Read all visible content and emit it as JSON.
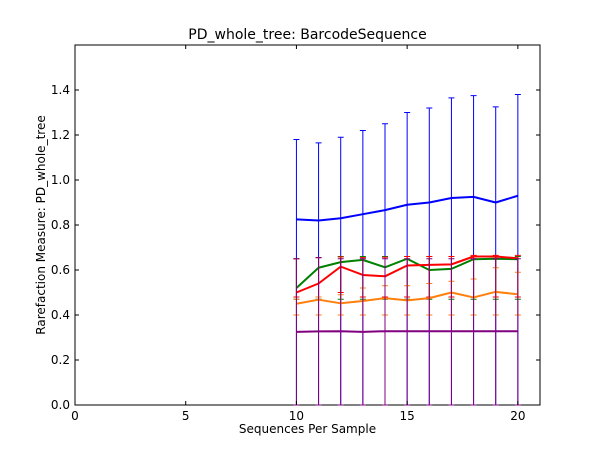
{
  "chart_data": {
    "type": "line",
    "title": "PD_whole_tree: BarcodeSequence",
    "xlabel": "Sequences Per Sample",
    "ylabel": "Rarefaction Measure: PD_whole_tree",
    "xlim": [
      0,
      21
    ],
    "ylim": [
      0.0,
      1.6
    ],
    "xticks": [
      0,
      5,
      10,
      15,
      20
    ],
    "yticks": [
      "0.0",
      "0.2",
      "0.4",
      "0.6",
      "0.8",
      "1.0",
      "1.2",
      "1.4"
    ],
    "grid": false,
    "x": [
      10,
      11,
      12,
      13,
      14,
      15,
      16,
      17,
      18,
      19,
      20
    ],
    "series": [
      {
        "color": "#0000ff",
        "values": [
          0.825,
          0.82,
          0.83,
          0.848,
          0.866,
          0.89,
          0.9,
          0.92,
          0.925,
          0.9,
          0.93
        ],
        "upper": [
          1.18,
          1.165,
          1.19,
          1.22,
          1.25,
          1.3,
          1.32,
          1.365,
          1.375,
          1.325,
          1.38
        ],
        "lower": [
          0.0,
          0.0,
          0.0,
          0.0,
          0.0,
          0.0,
          0.0,
          0.0,
          0.0,
          0.0,
          0.0
        ]
      },
      {
        "color": "#008000",
        "values": [
          0.52,
          0.61,
          0.635,
          0.645,
          0.612,
          0.65,
          0.6,
          0.605,
          0.648,
          0.65,
          0.648
        ],
        "upper": [
          0.65,
          0.655,
          0.66,
          0.66,
          0.66,
          0.66,
          0.66,
          0.66,
          0.66,
          0.66,
          0.66
        ],
        "lower": [
          0.47,
          0.47,
          0.47,
          0.47,
          0.47,
          0.47,
          0.47,
          0.47,
          0.47,
          0.47,
          0.47
        ]
      },
      {
        "color": "#ff0000",
        "values": [
          0.5,
          0.54,
          0.615,
          0.578,
          0.572,
          0.62,
          0.623,
          0.625,
          0.66,
          0.66,
          0.652
        ],
        "upper": [
          0.65,
          0.655,
          0.658,
          0.655,
          0.657,
          0.66,
          0.66,
          0.66,
          0.665,
          0.665,
          0.665
        ],
        "lower": [
          0.48,
          0.48,
          0.5,
          0.48,
          0.48,
          0.48,
          0.48,
          0.48,
          0.48,
          0.48,
          0.48
        ]
      },
      {
        "color": "#ff7f0e",
        "values": [
          0.45,
          0.468,
          0.452,
          0.462,
          0.475,
          0.465,
          0.475,
          0.5,
          0.478,
          0.503,
          0.492
        ],
        "upper": [
          0.47,
          0.48,
          0.49,
          0.52,
          0.53,
          0.53,
          0.54,
          0.55,
          0.56,
          0.61,
          0.59
        ],
        "lower": [
          0.4,
          0.4,
          0.4,
          0.4,
          0.4,
          0.4,
          0.4,
          0.4,
          0.4,
          0.4,
          0.4
        ]
      },
      {
        "color": "#800080",
        "values": [
          0.325,
          0.327,
          0.328,
          0.325,
          0.328,
          0.328,
          0.328,
          0.328,
          0.328,
          0.328,
          0.328
        ],
        "upper": [
          0.65,
          0.655,
          0.65,
          0.65,
          0.65,
          0.65,
          0.65,
          0.65,
          0.65,
          0.65,
          0.65
        ],
        "lower": [
          0.0,
          0.0,
          0.0,
          0.0,
          0.0,
          0.0,
          0.0,
          0.0,
          0.0,
          0.0,
          0.0
        ]
      }
    ]
  }
}
